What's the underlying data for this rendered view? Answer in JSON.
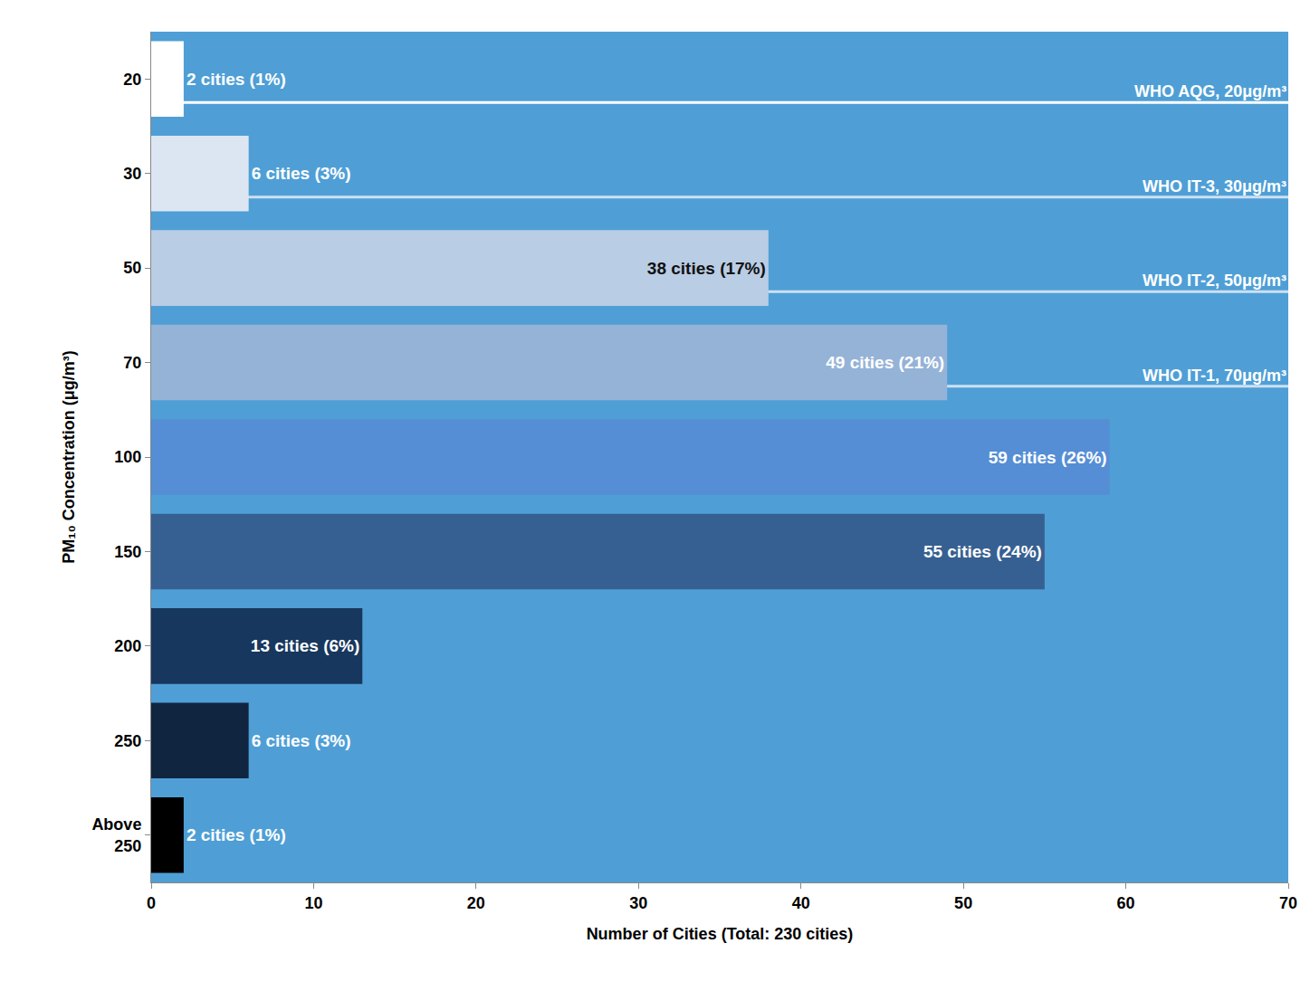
{
  "chart_data": {
    "type": "bar",
    "orientation": "horizontal",
    "categories": [
      "20",
      "30",
      "50",
      "70",
      "100",
      "150",
      "200",
      "250",
      "Above 250"
    ],
    "values": [
      2,
      6,
      38,
      49,
      59,
      55,
      13,
      6,
      2
    ],
    "value_labels": [
      "2 cities (1%)",
      "6 cities (3%)",
      "38 cities (17%)",
      "49 cities (21%)",
      "59 cities (26%)",
      "55 cities (24%)",
      "13 cities (6%)",
      "6 cities (3%)",
      "2 cities (1%)"
    ],
    "colors": [
      "#ffffff",
      "#dce6f2",
      "#b9cde5",
      "#95b3d7",
      "#558ed5",
      "#376092",
      "#17375e",
      "#10253f",
      "#000000"
    ],
    "data_labels": true,
    "x_label": "Number of Cities (Total: 230 cities)",
    "y_label": "PM₁₀ Concentration (μg/m³)",
    "xlim": [
      0,
      70
    ],
    "xticks": [
      0,
      10,
      20,
      30,
      40,
      50,
      60,
      70
    ],
    "grid": false,
    "annotations": [
      {
        "category": "20",
        "text": "WHO AQG, 20μg/m³"
      },
      {
        "category": "30",
        "text": "WHO IT-3, 30μg/m³"
      },
      {
        "category": "50",
        "text": "WHO IT-2, 50μg/m³"
      },
      {
        "category": "70",
        "text": "WHO IT-1, 70μg/m³"
      }
    ]
  }
}
